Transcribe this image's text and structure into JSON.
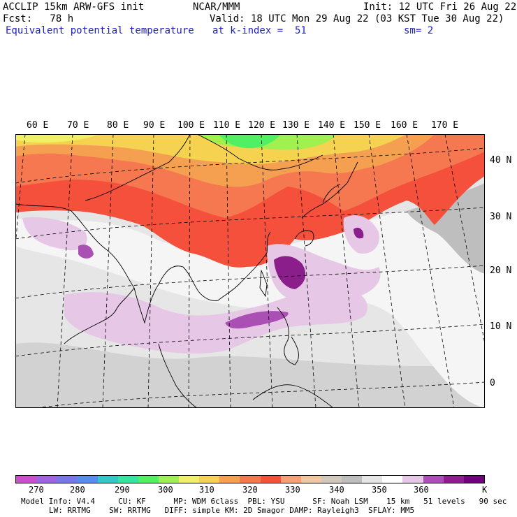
{
  "header": {
    "line1_left": "ACCLIP 15km ARW-GFS init",
    "line1_mid": "NCAR/MMM",
    "line1_right": "Init: 12 UTC Fri 26 Aug 22",
    "line2_left": "Fcst:   78 h",
    "line2_right": "Valid: 18 UTC Mon 29 Aug 22 (03 KST Tue 30 Aug 22)",
    "line3_left": "Equivalent potential temperature",
    "line3_mid": "at k-index =  51",
    "line3_right": "sm= 2"
  },
  "map": {
    "lon_labels": [
      "60 E",
      "70 E",
      "80 E",
      "90 E",
      "100 E",
      "110 E",
      "120 E",
      "130 E",
      "140 E",
      "150 E",
      "160 E",
      "170 E"
    ],
    "lat_labels": [
      "40 N",
      "30 N",
      "20 N",
      "10 N",
      "0"
    ]
  },
  "colorbar": {
    "colors": [
      "#c850c8",
      "#a064dc",
      "#7878e6",
      "#5a8cf0",
      "#32c8c8",
      "#32e6a0",
      "#50f064",
      "#a0f050",
      "#f0f064",
      "#f5d250",
      "#f5a050",
      "#f57850",
      "#f5503c",
      "#f5a078",
      "#f0c8a0",
      "#d2c8be",
      "#bebebe",
      "#e6e6e6",
      "#ffffff",
      "#e6c8e6",
      "#aa50b4",
      "#8c1e8c",
      "#6e0078"
    ],
    "ticks": [
      "270",
      "280",
      "290",
      "300",
      "310",
      "320",
      "330",
      "340",
      "350",
      "360"
    ],
    "unit": "K"
  },
  "model_info": {
    "line1": "Model Info: V4.4     CU: KF      MP: WDM 6class  PBL: YSU      SF: Noah LSM    15 km   51 levels   90 sec",
    "line2": "LW: RRTMG    SW: RRTMG   DIFF: simple KM: 2D Smagor DAMP: Rayleigh3  SFLAY: MM5"
  }
}
